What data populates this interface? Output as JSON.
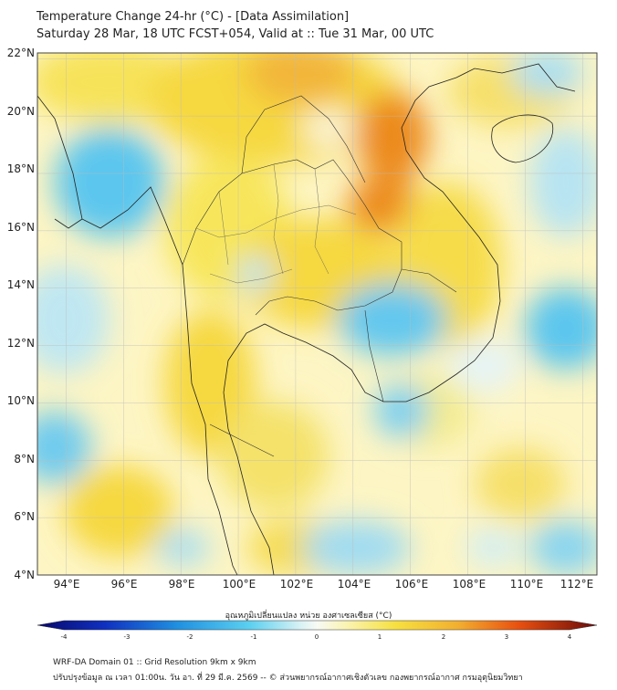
{
  "header": {
    "title_line1": "Temperature Change 24-hr (°C) - [Data Assimilation]",
    "title_line2": "Saturday 28 Mar, 18 UTC FCST+054, Valid at :: Tue 31 Mar, 00 UTC"
  },
  "map": {
    "lat_labels": [
      "22°N",
      "20°N",
      "18°N",
      "16°N",
      "14°N",
      "12°N",
      "10°N",
      "8°N",
      "6°N",
      "4°N"
    ],
    "lon_labels": [
      "94°E",
      "96°E",
      "98°E",
      "100°E",
      "102°E",
      "104°E",
      "106°E",
      "108°E",
      "110°E",
      "112°E"
    ],
    "lat_range": [
      4,
      22.2
    ],
    "lon_range": [
      93,
      112.5
    ]
  },
  "colorbar": {
    "label": "อุณหภูมิเปลี่ยนแปลง หน่วย องศาเซลเซียส (°C)",
    "ticks": [
      "-4",
      "-3",
      "-2",
      "-1",
      "0",
      "1",
      "2",
      "3",
      "4"
    ],
    "range": [
      -4,
      4
    ]
  },
  "footer": {
    "line1": "WRF-DA Domain 01 :: Grid Resolution 9km x 9km",
    "line2": "ปรับปรุงข้อมูล ณ เวลา 01:00น. วัน อา. ที่ 29 มี.ค. 2569 -- © ส่วนพยากรณ์อากาศเชิงตัวเลข กองพยากรณ์อากาศ กรมอุตุนิยมวิทยา"
  },
  "colors": {
    "warm": "#f6dc3a",
    "hot": "#e8740a",
    "cool": "#5cc6ee",
    "neutral": "#f4f8f4"
  }
}
